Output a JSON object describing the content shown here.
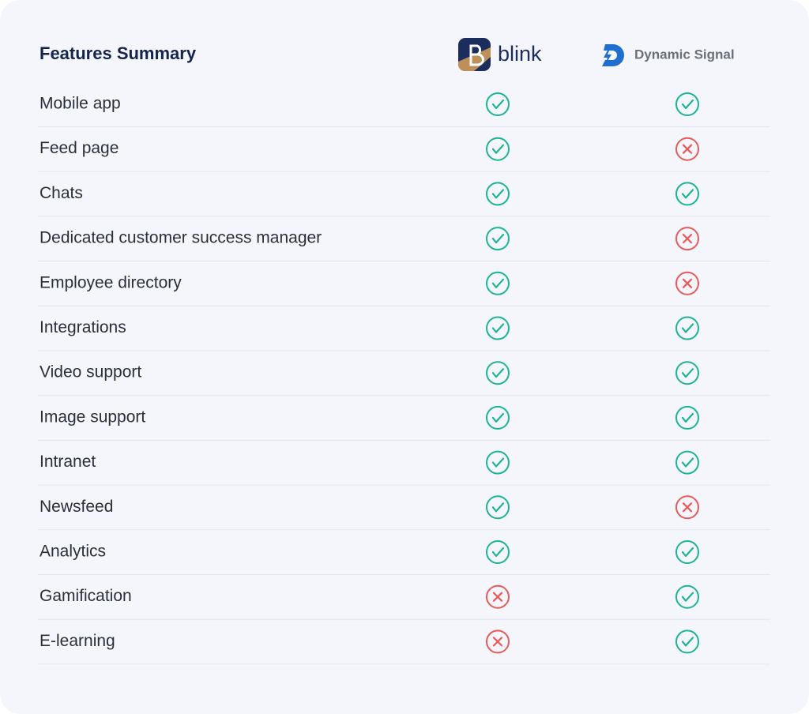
{
  "header": {
    "title": "Features Summary",
    "columns": [
      "blink",
      "Dynamic Signal"
    ]
  },
  "table": {
    "rows": [
      {
        "feature": "Mobile app",
        "values": [
          true,
          true
        ]
      },
      {
        "feature": "Feed page",
        "values": [
          true,
          false
        ]
      },
      {
        "feature": "Chats",
        "values": [
          true,
          true
        ]
      },
      {
        "feature": "Dedicated customer success manager",
        "values": [
          true,
          false
        ]
      },
      {
        "feature": "Employee directory",
        "values": [
          true,
          false
        ]
      },
      {
        "feature": "Integrations",
        "values": [
          true,
          true
        ]
      },
      {
        "feature": "Video support",
        "values": [
          true,
          true
        ]
      },
      {
        "feature": "Image support",
        "values": [
          true,
          true
        ]
      },
      {
        "feature": "Intranet",
        "values": [
          true,
          true
        ]
      },
      {
        "feature": "Newsfeed",
        "values": [
          true,
          false
        ]
      },
      {
        "feature": "Analytics",
        "values": [
          true,
          true
        ]
      },
      {
        "feature": "Gamification",
        "values": [
          false,
          true
        ]
      },
      {
        "feature": "E-learning",
        "values": [
          false,
          true
        ]
      }
    ]
  }
}
